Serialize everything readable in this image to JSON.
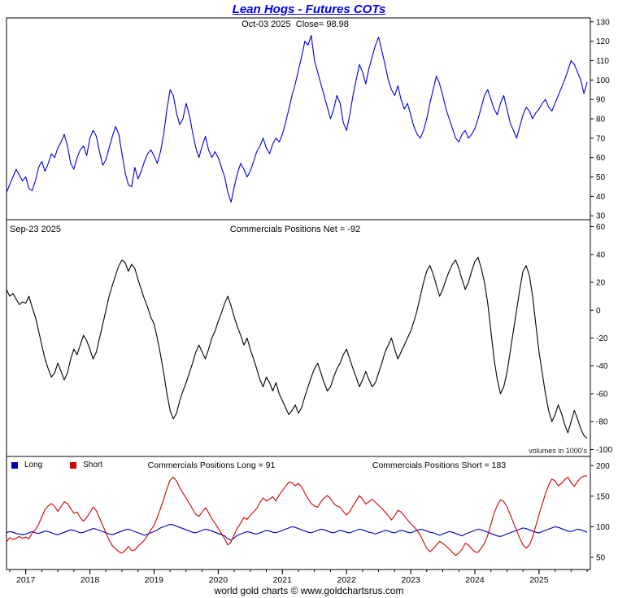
{
  "header": {
    "title": "Lean Hogs - Futures COTs",
    "title_color": "#0000ee"
  },
  "panels": {
    "price": {
      "header": "Oct-03 2025  Close= 98.98"
    },
    "net": {
      "date_label": "Sep-23 2025",
      "header": "Commercials Positions Net = -92",
      "note": "volumes in 1000's"
    },
    "positions": {
      "legend": [
        {
          "label": "Long",
          "color": "#0000bb"
        },
        {
          "label": "Short",
          "color": "#cc0000"
        }
      ],
      "long_header": "Commercials Positions Long = 91",
      "short_header": "Commercials Positions Short = 183"
    }
  },
  "footer": {
    "text": "world gold charts © www.goldchartsrus.com"
  },
  "chart_data": {
    "type": "line",
    "title": "Lean Hogs - Futures COTs",
    "x_start": 2016.7,
    "x_step": 0.05,
    "x_domain": [
      2016.7,
      2025.8
    ],
    "x_ticks": [
      2017,
      2018,
      2019,
      2020,
      2021,
      2022,
      2023,
      2024,
      2025
    ],
    "panels": [
      {
        "id": "price",
        "label": "Lean Hogs futures price, Oct-03 2025 close = 98.98",
        "ylim": [
          28,
          132
        ],
        "yticks": [
          130,
          120,
          110,
          100,
          90,
          80,
          70,
          60,
          50,
          40,
          30
        ],
        "series": [
          {
            "name": "lean-hogs-price",
            "color": "#0000dd",
            "values": [
              42,
              46,
              50,
              54,
              51,
              48,
              50,
              44,
              43,
              48,
              55,
              58,
              53,
              57,
              62,
              60,
              65,
              68,
              72,
              66,
              57,
              54,
              60,
              64,
              66,
              61,
              70,
              74,
              71,
              63,
              56,
              59,
              65,
              71,
              76,
              72,
              62,
              52,
              46,
              45,
              55,
              49,
              53,
              58,
              62,
              64,
              61,
              57,
              63,
              72,
              85,
              95,
              92,
              83,
              77,
              80,
              88,
              82,
              73,
              65,
              60,
              66,
              71,
              64,
              60,
              63,
              60,
              55,
              50,
              42,
              37,
              45,
              52,
              57,
              54,
              50,
              53,
              58,
              63,
              66,
              70,
              65,
              62,
              67,
              70,
              68,
              72,
              78,
              85,
              92,
              98,
              105,
              112,
              120,
              118,
              123,
              110,
              104,
              98,
              92,
              86,
              80,
              85,
              92,
              88,
              78,
              74,
              82,
              92,
              100,
              108,
              104,
              98,
              106,
              112,
              118,
              122,
              115,
              108,
              100,
              95,
              92,
              97,
              90,
              85,
              88,
              82,
              76,
              72,
              70,
              74,
              80,
              88,
              95,
              102,
              98,
              92,
              85,
              80,
              75,
              70,
              68,
              72,
              74,
              70,
              72,
              75,
              80,
              86,
              92,
              95,
              90,
              85,
              82,
              88,
              92,
              85,
              78,
              74,
              70,
              76,
              82,
              86,
              84,
              80,
              83,
              85,
              88,
              90,
              86,
              84,
              88,
              92,
              96,
              100,
              105,
              110,
              108,
              104,
              100,
              93,
              99
            ]
          }
        ]
      },
      {
        "id": "net",
        "label": "Commercials Positions Net = -92 (Sep-23 2025), volumes in 1000's",
        "ylim": [
          -105,
          65
        ],
        "yticks": [
          60,
          40,
          20,
          0,
          -20,
          -40,
          -60,
          -80,
          -100
        ],
        "series": [
          {
            "name": "commercials-net",
            "color": "#000000",
            "values": [
              15,
              10,
              12,
              8,
              4,
              6,
              5,
              10,
              2,
              -5,
              -15,
              -25,
              -35,
              -42,
              -48,
              -45,
              -38,
              -44,
              -50,
              -45,
              -35,
              -28,
              -32,
              -25,
              -18,
              -22,
              -28,
              -35,
              -30,
              -20,
              -10,
              0,
              10,
              18,
              25,
              32,
              36,
              34,
              28,
              33,
              30,
              22,
              15,
              8,
              2,
              -5,
              -10,
              -20,
              -32,
              -45,
              -60,
              -72,
              -78,
              -74,
              -65,
              -58,
              -52,
              -45,
              -38,
              -30,
              -25,
              -30,
              -35,
              -28,
              -20,
              -15,
              -8,
              -2,
              5,
              10,
              3,
              -5,
              -12,
              -18,
              -25,
              -20,
              -28,
              -35,
              -42,
              -50,
              -55,
              -48,
              -52,
              -58,
              -52,
              -60,
              -65,
              -70,
              -75,
              -72,
              -68,
              -74,
              -70,
              -62,
              -55,
              -48,
              -42,
              -38,
              -45,
              -52,
              -58,
              -55,
              -48,
              -42,
              -38,
              -32,
              -28,
              -35,
              -42,
              -48,
              -55,
              -50,
              -44,
              -50,
              -55,
              -52,
              -45,
              -38,
              -30,
              -25,
              -20,
              -28,
              -35,
              -30,
              -25,
              -20,
              -15,
              -8,
              0,
              10,
              20,
              28,
              32,
              26,
              18,
              10,
              15,
              22,
              28,
              33,
              36,
              30,
              22,
              15,
              20,
              28,
              35,
              38,
              30,
              20,
              5,
              -15,
              -35,
              -50,
              -60,
              -55,
              -45,
              -30,
              -15,
              0,
              15,
              28,
              32,
              25,
              10,
              -10,
              -30,
              -45,
              -60,
              -72,
              -80,
              -75,
              -68,
              -74,
              -82,
              -88,
              -80,
              -72,
              -78,
              -85,
              -90,
              -92
            ]
          }
        ]
      },
      {
        "id": "positions",
        "label": "Commercials Positions Long = 91, Short = 183",
        "ylim": [
          30,
          215
        ],
        "yticks": [
          200,
          150,
          100,
          50
        ],
        "series": [
          {
            "name": "commercials-long",
            "color": "#0000bb",
            "values": [
              90,
              92,
              91,
              89,
              88,
              87,
              88,
              90,
              92,
              90,
              89,
              91,
              93,
              92,
              90,
              88,
              87,
              89,
              91,
              93,
              95,
              94,
              92,
              90,
              91,
              93,
              95,
              97,
              96,
              94,
              92,
              90,
              88,
              87,
              89,
              91,
              93,
              95,
              96,
              94,
              92,
              90,
              88,
              86,
              88,
              90,
              92,
              95,
              98,
              100,
              102,
              104,
              103,
              101,
              99,
              97,
              95,
              93,
              91,
              90,
              92,
              94,
              96,
              95,
              93,
              91,
              89,
              87,
              85,
              80,
              78,
              82,
              86,
              88,
              90,
              92,
              91,
              89,
              88,
              90,
              92,
              94,
              93,
              91,
              90,
              92,
              94,
              96,
              98,
              100,
              99,
              97,
              95,
              93,
              91,
              90,
              92,
              94,
              96,
              95,
              93,
              91,
              90,
              92,
              94,
              93,
              91,
              90,
              92,
              94,
              96,
              95,
              93,
              91,
              90,
              88,
              90,
              92,
              94,
              93,
              91,
              90,
              92,
              94,
              93,
              91,
              90,
              92,
              94,
              96,
              95,
              93,
              91,
              90,
              88,
              86,
              88,
              90,
              92,
              91,
              89,
              87,
              85,
              88,
              90,
              92,
              94,
              96,
              95,
              93,
              91,
              89,
              87,
              85,
              84,
              86,
              88,
              90,
              92,
              94,
              96,
              98,
              97,
              95,
              93,
              91,
              90,
              92,
              94,
              96,
              98,
              100,
              99,
              97,
              95,
              93,
              92,
              94,
              96,
              95,
              93,
              91
            ]
          },
          {
            "name": "commercials-short",
            "color": "#cc0000",
            "values": [
              75,
              82,
              79,
              81,
              84,
              81,
              83,
              80,
              90,
              95,
              104,
              116,
              128,
              134,
              138,
              133,
              125,
              133,
              141,
              138,
              130,
              122,
              124,
              115,
              109,
              115,
              123,
              132,
              126,
              114,
              102,
              90,
              78,
              69,
              64,
              59,
              57,
              61,
              68,
              61,
              62,
              68,
              73,
              78,
              86,
              95,
              102,
              115,
              130,
              145,
              162,
              176,
              181,
              175,
              164,
              155,
              147,
              138,
              129,
              120,
              117,
              124,
              131,
              123,
              113,
              106,
              97,
              89,
              80,
              70,
              75,
              87,
              98,
              106,
              115,
              112,
              119,
              124,
              130,
              140,
              147,
              142,
              145,
              149,
              142,
              152,
              159,
              166,
              173,
              172,
              167,
              171,
              165,
              155,
              146,
              138,
              134,
              132,
              141,
              147,
              151,
              146,
              138,
              134,
              132,
              125,
              119,
              125,
              134,
              142,
              151,
              145,
              137,
              141,
              145,
              140,
              135,
              130,
              124,
              118,
              111,
              118,
              127,
              124,
              118,
              111,
              105,
              100,
              94,
              86,
              75,
              65,
              59,
              64,
              70,
              76,
              73,
              68,
              64,
              58,
              53,
              57,
              63,
              73,
              70,
              64,
              59,
              58,
              65,
              73,
              86,
              104,
              122,
              135,
              144,
              141,
              133,
              120,
              107,
              94,
              81,
              70,
              65,
              70,
              83,
              101,
              120,
              137,
              154,
              168,
              178,
              175,
              167,
              171,
              177,
              181,
              172,
              166,
              174,
              180,
              183,
              183
            ]
          }
        ]
      }
    ]
  }
}
